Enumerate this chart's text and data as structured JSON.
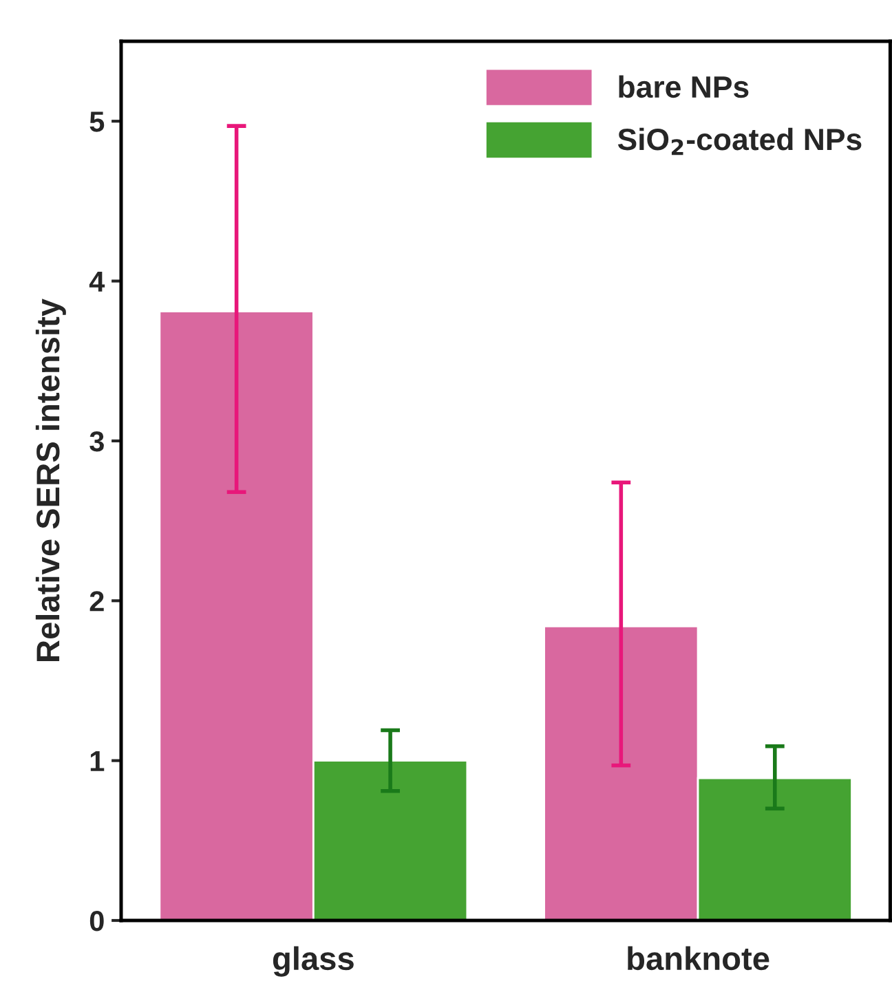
{
  "chart_data": {
    "type": "bar",
    "ylabel": "Relative SERS intensity",
    "categories": [
      "glass",
      "banknote"
    ],
    "series": [
      {
        "name": "bare NPs",
        "color": "#d9689f",
        "values": [
          3.81,
          1.84
        ],
        "errors": [
          [
            2.68,
            4.97
          ],
          [
            0.97,
            2.74
          ]
        ]
      },
      {
        "name": "SiO$_{2}$-coated NPs",
        "color": "#45a332",
        "values": [
          1.0,
          0.89
        ],
        "errors": [
          [
            0.81,
            1.19
          ],
          [
            0.7,
            1.09
          ]
        ]
      }
    ],
    "ylim": [
      0,
      5.5
    ],
    "yticks": [
      0,
      1,
      2,
      3,
      4,
      5
    ],
    "legend": "top right",
    "grid": false
  }
}
